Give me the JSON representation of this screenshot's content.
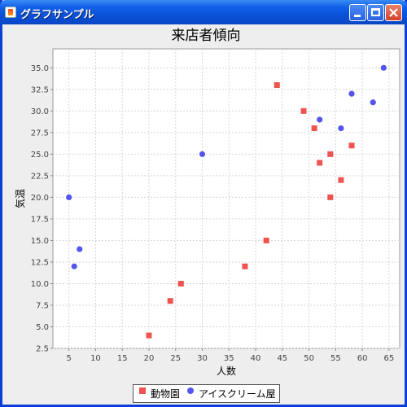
{
  "window": {
    "title": "グラフサンプル",
    "icons": {
      "app": "java-app-icon",
      "minimize": "minimize-icon",
      "maximize": "maximize-icon",
      "close": "close-icon"
    }
  },
  "colors": {
    "zoo": "#ef5350",
    "ice_cream": "#5555ee",
    "plot_bg": "#ffffff",
    "grid": "#d6d6d6"
  },
  "chart_data": {
    "type": "scatter",
    "title": "来店者傾向",
    "xlabel": "人数",
    "ylabel": "気温",
    "xlim": [
      2,
      67
    ],
    "ylim": [
      2.5,
      37.2
    ],
    "x_ticks": [
      5,
      10,
      15,
      20,
      25,
      30,
      35,
      40,
      45,
      50,
      55,
      60,
      65
    ],
    "y_ticks": [
      2.5,
      5.0,
      7.5,
      10.0,
      12.5,
      15.0,
      17.5,
      20.0,
      22.5,
      25.0,
      27.5,
      30.0,
      32.5,
      35.0
    ],
    "grid": true,
    "legend": "bottom-center",
    "series": [
      {
        "name": "動物園",
        "marker": "square",
        "points": [
          [
            20,
            4
          ],
          [
            24,
            8
          ],
          [
            26,
            10
          ],
          [
            38,
            12
          ],
          [
            42,
            15
          ],
          [
            44,
            33
          ],
          [
            49,
            30
          ],
          [
            51,
            28
          ],
          [
            52,
            24
          ],
          [
            54,
            20
          ],
          [
            54,
            25
          ],
          [
            56,
            22
          ],
          [
            58,
            26
          ]
        ]
      },
      {
        "name": "アイスクリーム屋",
        "marker": "circle",
        "points": [
          [
            5,
            20
          ],
          [
            6,
            12
          ],
          [
            7,
            14
          ],
          [
            30,
            25
          ],
          [
            52,
            29
          ],
          [
            56,
            28
          ],
          [
            58,
            32
          ],
          [
            62,
            31
          ],
          [
            64,
            35
          ]
        ]
      }
    ]
  }
}
